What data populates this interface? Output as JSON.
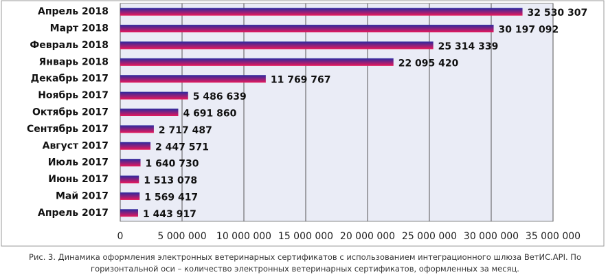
{
  "chart_data": {
    "type": "barh",
    "categories": [
      "Апрель 2018",
      "Март 2018",
      "Февраль 2018",
      "Январь 2018",
      "Декабрь 2017",
      "Ноябрь 2017",
      "Октябрь 2017",
      "Сентябрь 2017",
      "Август 2017",
      "Июль 2017",
      "Июнь 2017",
      "Май 2017",
      "Апрель 2017"
    ],
    "values": [
      32530307,
      30197092,
      25314339,
      22095420,
      11769767,
      5486639,
      4691860,
      2717487,
      2447571,
      1640730,
      1513078,
      1569417,
      1443917
    ],
    "value_labels": [
      "32 530 307",
      "30 197 092",
      "25 314 339",
      "22 095 420",
      "11 769 767",
      "5 486 639",
      "4 691 860",
      "2 717 487",
      "2 447 571",
      "1 640 730",
      "1 513 078",
      "1 569 417",
      "1 443 917"
    ],
    "gradient": [
      "#2a2aa0",
      "#e8185a"
    ],
    "xlim": [
      0,
      35000000
    ],
    "xticks": [
      0,
      {
        "value": 5000000,
        "label": "5 000 000"
      },
      {
        "value": 10000000,
        "label": "10 000 000"
      },
      {
        "value": 15000000,
        "label": "15 000 000"
      },
      {
        "value": 20000000,
        "label": "20 000 000"
      },
      {
        "value": 25000000,
        "label": "25 000 000"
      },
      {
        "value": 30000000,
        "label": "30 000 000"
      },
      {
        "value": 35000000,
        "label": "35 000 000"
      }
    ],
    "grid": true,
    "caption": "Рис. 3. Динамика оформления электронных ветеринарных сертификатов с использованием интеграционного шлюза ВетИС.API. По горизонтальной оси – количество электронных ветеринарных сертификатов, оформленных за месяц."
  }
}
